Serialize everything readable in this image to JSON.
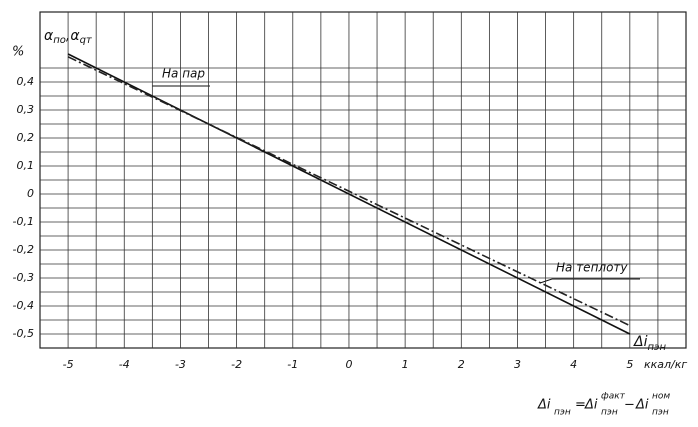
{
  "chart_data": {
    "type": "line",
    "y_axis_label": "%",
    "corner_label": {
      "a1": "α",
      "s1": "по",
      "a2": ",α",
      "s2": "qт"
    },
    "x_axis_symbol": {
      "main": "Δi",
      "sub": "пэн"
    },
    "x_unit": "ккал/кг",
    "formula": {
      "lhs": "Δi",
      "lhs_sub": "пэн",
      "eq": "=",
      "t1": "Δi",
      "t1_sup": "факт",
      "t1_sub": "пэн",
      "minus": "−",
      "t2": "Δi",
      "t2_sup": "ном",
      "t2_sub": "пэн"
    },
    "x": [
      -5,
      5
    ],
    "series": [
      {
        "name": "На пар",
        "color": "#111111",
        "style": "solid",
        "values": [
          0.5,
          -0.5
        ]
      },
      {
        "name": "На теплоту",
        "color": "#222222",
        "style": "dashdot",
        "values": [
          0.49,
          -0.47
        ]
      }
    ],
    "xlim": [
      -5.5,
      6
    ],
    "ylim": [
      -0.55,
      0.65
    ],
    "xticks": [
      -5,
      -4,
      -3,
      -2,
      -1,
      0,
      1,
      2,
      3,
      4,
      5
    ],
    "yticks": [
      {
        "value": 0.4,
        "label": "0,4"
      },
      {
        "value": 0.3,
        "label": "0,3"
      },
      {
        "value": 0.2,
        "label": "0,2"
      },
      {
        "value": 0.1,
        "label": "0,1"
      },
      0,
      {
        "value": -0.1,
        "label": "-0,1"
      },
      {
        "value": -0.2,
        "label": "-0,2"
      },
      {
        "value": -0.3,
        "label": "-0,3"
      },
      {
        "value": -0.4,
        "label": "-0,4"
      },
      {
        "value": -0.5,
        "label": "-0,5"
      }
    ],
    "grid": true,
    "grid_minor": true
  }
}
